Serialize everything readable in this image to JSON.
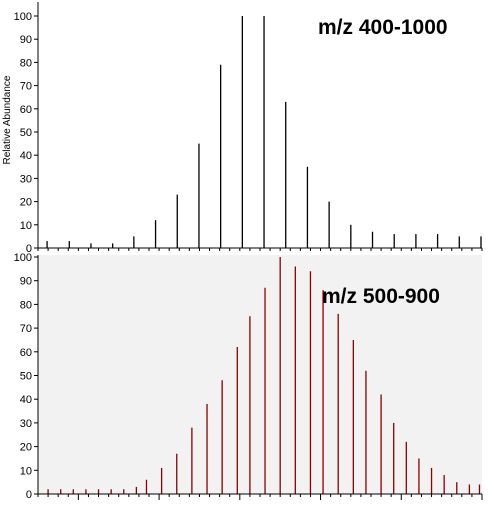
{
  "chart_data": [
    {
      "type": "bar",
      "annotation": "m/z 400-1000",
      "ylabel": "Relative Abundance",
      "ylim": [
        0,
        100
      ],
      "y_ticks": [
        "0",
        "10",
        "20",
        "30",
        "40",
        "50",
        "60",
        "70",
        "80",
        "90",
        "100"
      ],
      "xlim": [
        22.1,
        22.98
      ],
      "x_tick_labels": [],
      "peak_color": "#000000",
      "peaks": [
        {
          "x": 22.118,
          "y": 3
        },
        {
          "x": 22.162,
          "y": 3
        },
        {
          "x": 22.205,
          "y": 2
        },
        {
          "x": 22.248,
          "y": 2
        },
        {
          "x": 22.29,
          "y": 5
        },
        {
          "x": 22.333,
          "y": 12
        },
        {
          "x": 22.376,
          "y": 23
        },
        {
          "x": 22.419,
          "y": 45
        },
        {
          "x": 22.462,
          "y": 79
        },
        {
          "x": 22.505,
          "y": 100
        },
        {
          "x": 22.548,
          "y": 100
        },
        {
          "x": 22.591,
          "y": 63
        },
        {
          "x": 22.634,
          "y": 35
        },
        {
          "x": 22.677,
          "y": 20
        },
        {
          "x": 22.72,
          "y": 10
        },
        {
          "x": 22.763,
          "y": 7
        },
        {
          "x": 22.806,
          "y": 6
        },
        {
          "x": 22.849,
          "y": 6
        },
        {
          "x": 22.892,
          "y": 6
        },
        {
          "x": 22.935,
          "y": 5
        },
        {
          "x": 22.978,
          "y": 5
        }
      ]
    },
    {
      "type": "bar",
      "annotation": "m/z 500-900",
      "ylabel": "",
      "ylim": [
        0,
        100
      ],
      "y_ticks": [
        "0",
        "10",
        "20",
        "30",
        "40",
        "50",
        "60",
        "70",
        "80",
        "90",
        "100"
      ],
      "xlim": [
        22.1,
        22.98
      ],
      "x_tick_labels": [],
      "peak_color": "#8b0000",
      "peaks": [
        {
          "x": 22.12,
          "y": 2
        },
        {
          "x": 22.145,
          "y": 2
        },
        {
          "x": 22.17,
          "y": 2
        },
        {
          "x": 22.195,
          "y": 2
        },
        {
          "x": 22.22,
          "y": 2
        },
        {
          "x": 22.245,
          "y": 2
        },
        {
          "x": 22.27,
          "y": 2
        },
        {
          "x": 22.295,
          "y": 3
        },
        {
          "x": 22.315,
          "y": 6
        },
        {
          "x": 22.345,
          "y": 11
        },
        {
          "x": 22.375,
          "y": 17
        },
        {
          "x": 22.405,
          "y": 28
        },
        {
          "x": 22.435,
          "y": 38
        },
        {
          "x": 22.465,
          "y": 48
        },
        {
          "x": 22.495,
          "y": 62
        },
        {
          "x": 22.52,
          "y": 75
        },
        {
          "x": 22.55,
          "y": 87
        },
        {
          "x": 22.58,
          "y": 100
        },
        {
          "x": 22.61,
          "y": 96
        },
        {
          "x": 22.64,
          "y": 94
        },
        {
          "x": 22.665,
          "y": 86
        },
        {
          "x": 22.695,
          "y": 76
        },
        {
          "x": 22.725,
          "y": 65
        },
        {
          "x": 22.75,
          "y": 52
        },
        {
          "x": 22.78,
          "y": 42
        },
        {
          "x": 22.805,
          "y": 30
        },
        {
          "x": 22.83,
          "y": 22
        },
        {
          "x": 22.855,
          "y": 15
        },
        {
          "x": 22.88,
          "y": 11
        },
        {
          "x": 22.905,
          "y": 8
        },
        {
          "x": 22.93,
          "y": 5
        },
        {
          "x": 22.955,
          "y": 4
        },
        {
          "x": 22.975,
          "y": 4
        }
      ]
    }
  ]
}
